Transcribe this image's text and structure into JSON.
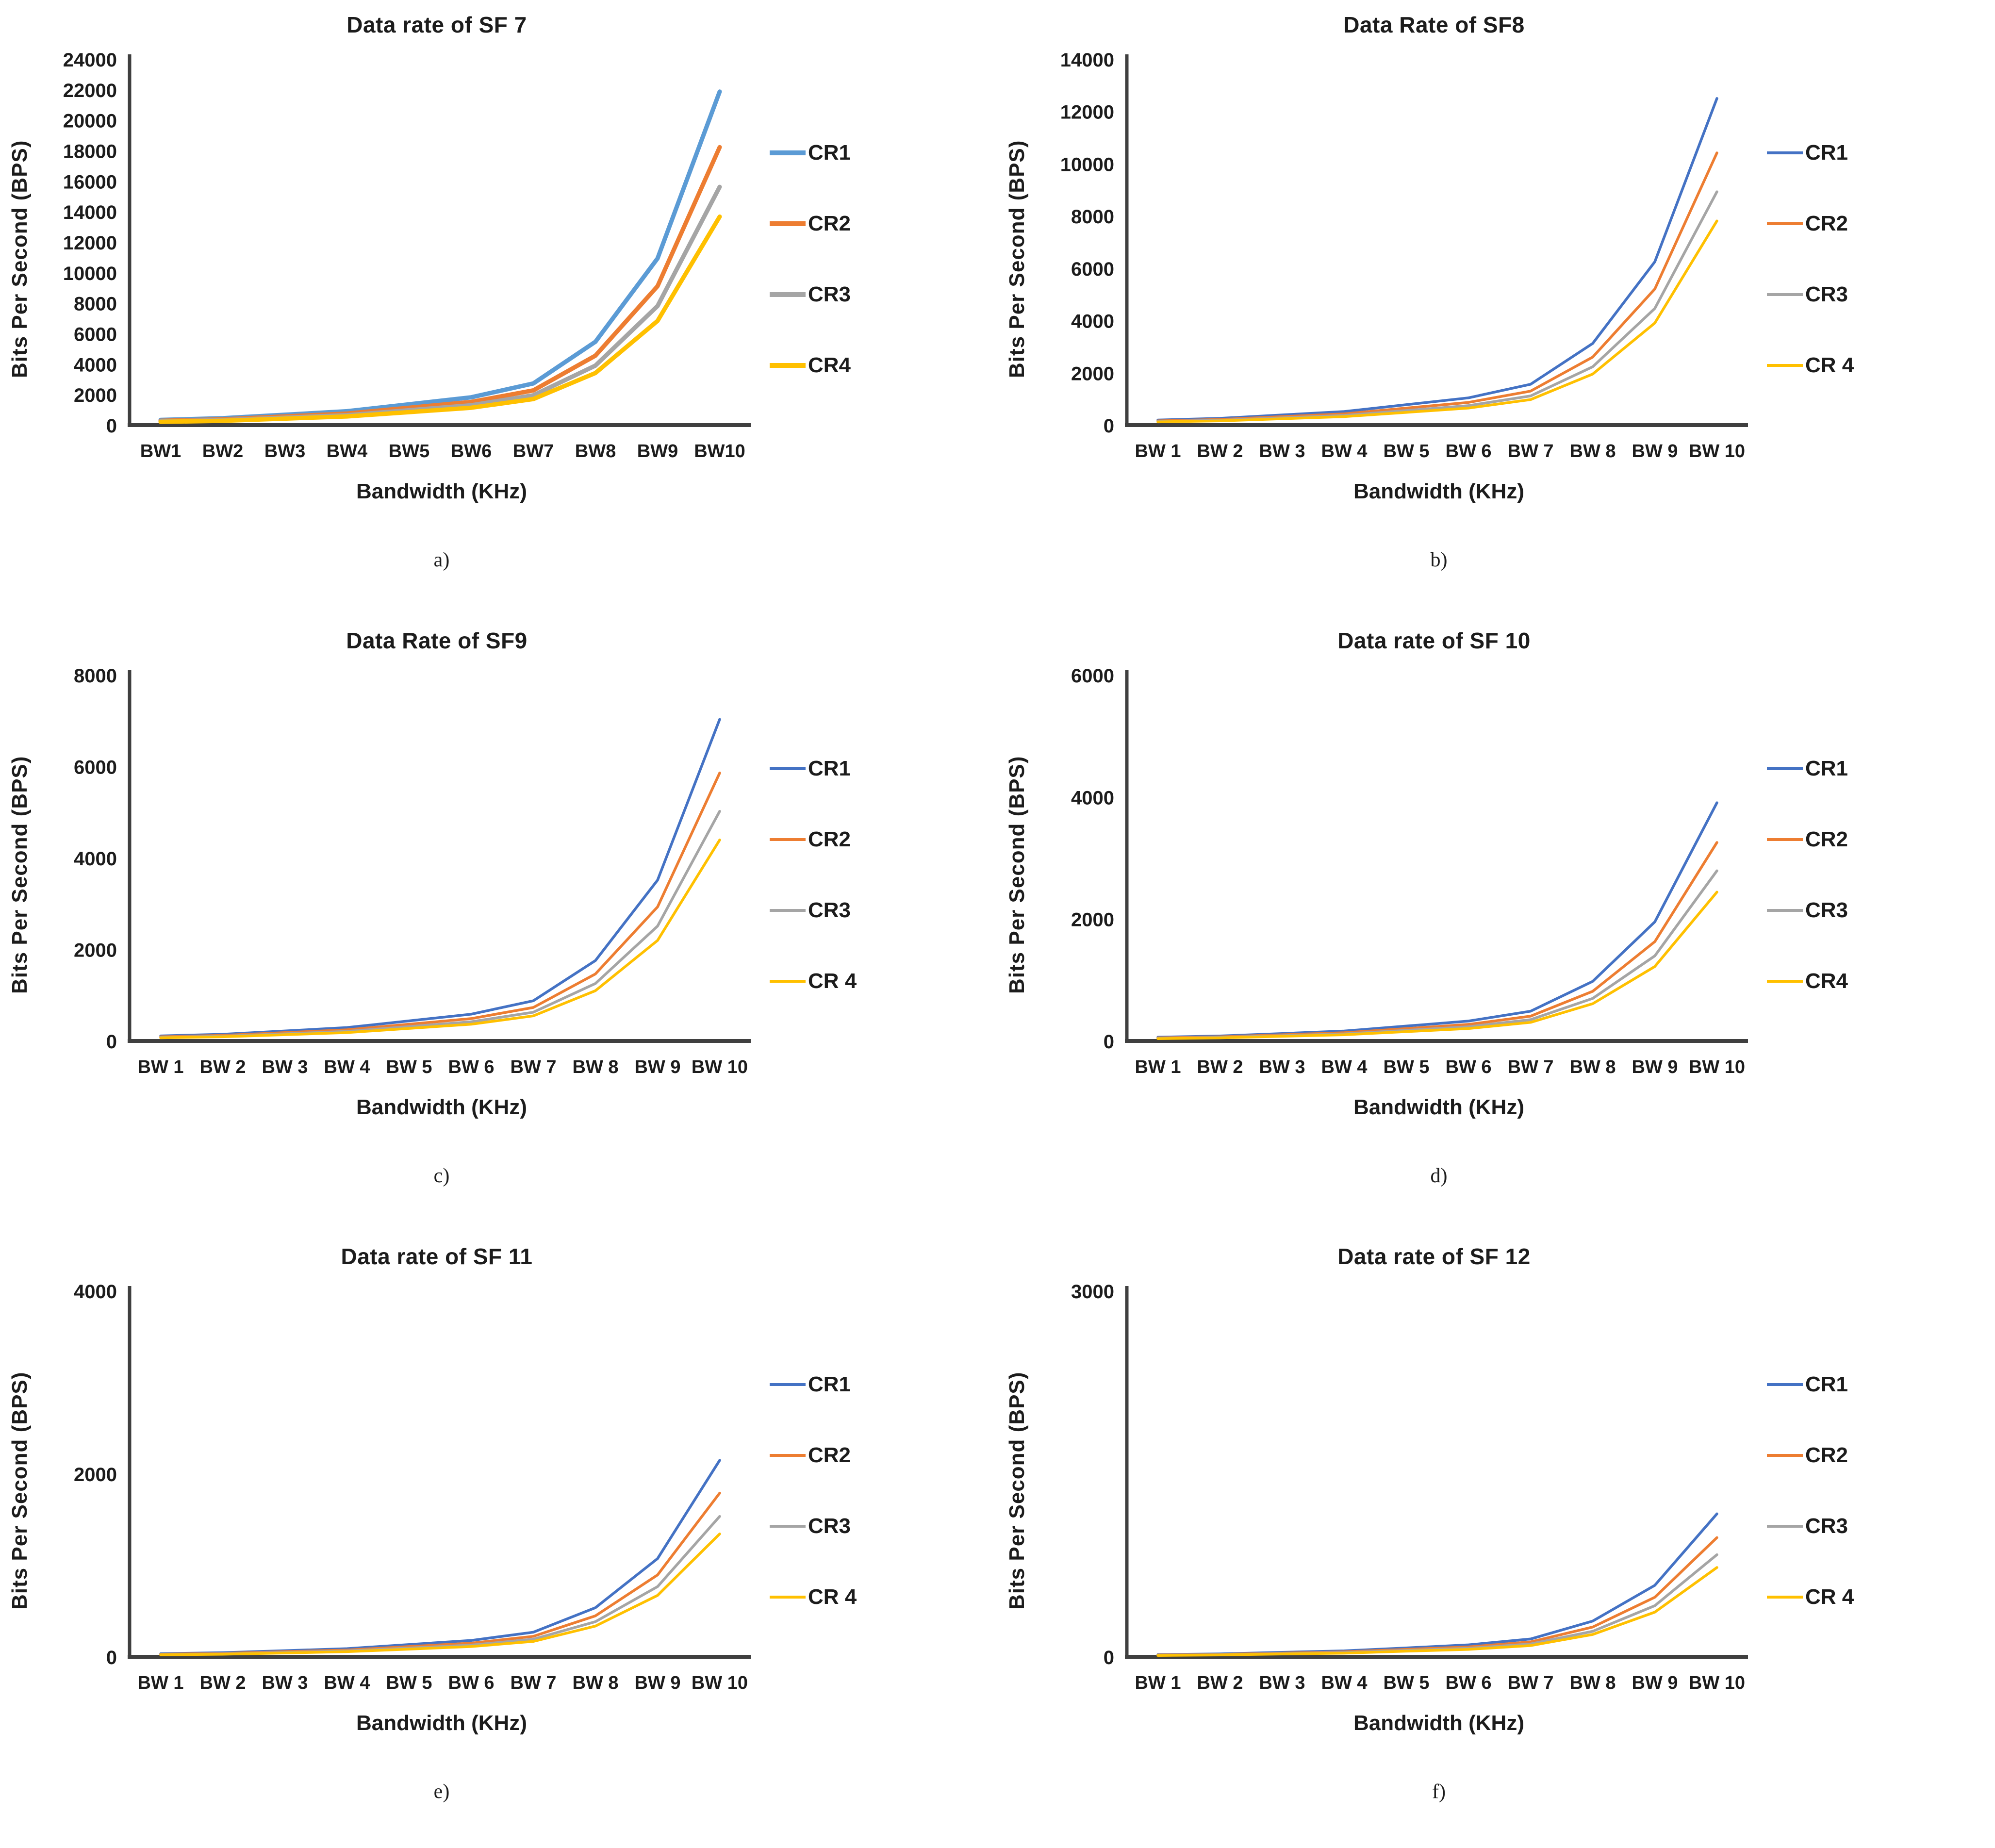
{
  "figure": {
    "background": "#ffffff",
    "text_color": "#1c1c1c",
    "axis_color": "#3f3f3f"
  },
  "chart_data": [
    {
      "type": "line",
      "panel": "a",
      "sub_label": "a)",
      "title": "Data rate of SF 7",
      "xlabel": "Bandwidth (KHz)",
      "ylabel": "Bits Per Second (BPS)",
      "categories": [
        "BW1",
        "BW2",
        "BW3",
        "BW4",
        "BW5",
        "BW6",
        "BW7",
        "BW8",
        "BW9",
        "BW10"
      ],
      "ylim": [
        0,
        24000
      ],
      "y_ticks": [
        0,
        2000,
        4000,
        6000,
        8000,
        10000,
        12000,
        14000,
        16000,
        18000,
        20000,
        22000,
        24000
      ],
      "grid": false,
      "legend_position": "right",
      "series": [
        {
          "name": "CR1",
          "color": "#5B9BD5",
          "values": [
            341,
            455,
            682,
            910,
            1367,
            1824,
            2734,
            5469,
            10938,
            21875
          ]
        },
        {
          "name": "CR2",
          "color": "#ED7D31",
          "values": [
            284,
            379,
            569,
            758,
            1139,
            1520,
            2279,
            4557,
            9115,
            18229
          ]
        },
        {
          "name": "CR3",
          "color": "#A5A5A5",
          "values": [
            244,
            325,
            488,
            650,
            977,
            1303,
            1953,
            3906,
            7813,
            15625
          ]
        },
        {
          "name": "CR4",
          "color": "#FFC000",
          "values": [
            213,
            284,
            427,
            569,
            854,
            1140,
            1709,
            3418,
            6836,
            13672
          ]
        }
      ]
    },
    {
      "type": "line",
      "panel": "b",
      "sub_label": "b)",
      "title": "Data Rate of SF8",
      "xlabel": "Bandwidth (KHz)",
      "ylabel": "Bits Per Second (BPS)",
      "categories": [
        "BW 1",
        "BW 2",
        "BW 3",
        "BW 4",
        "BW 5",
        "BW 6",
        "BW 7",
        "BW 8",
        "BW 9",
        "BW 10"
      ],
      "ylim": [
        0,
        14000
      ],
      "y_ticks": [
        0,
        2000,
        4000,
        6000,
        8000,
        10000,
        12000,
        14000
      ],
      "grid": false,
      "legend_position": "right",
      "series": [
        {
          "name": "CR1",
          "color": "#4472C4",
          "values": [
            195,
            260,
            390,
            520,
            781,
            1043,
            1563,
            3125,
            6250,
            12500
          ]
        },
        {
          "name": "CR2",
          "color": "#ED7D31",
          "values": [
            163,
            217,
            325,
            433,
            651,
            869,
            1302,
            2604,
            5208,
            10417
          ]
        },
        {
          "name": "CR3",
          "color": "#A5A5A5",
          "values": [
            139,
            186,
            279,
            371,
            558,
            745,
            1116,
            2232,
            4464,
            8929
          ]
        },
        {
          "name": "CR 4",
          "color": "#FFC000",
          "values": [
            122,
            163,
            244,
            325,
            488,
            652,
            977,
            1953,
            3906,
            7813
          ]
        }
      ]
    },
    {
      "type": "line",
      "panel": "c",
      "sub_label": "c)",
      "title": "Data Rate of SF9",
      "xlabel": "Bandwidth (KHz)",
      "ylabel": "Bits Per Second (BPS)",
      "categories": [
        "BW 1",
        "BW 2",
        "BW 3",
        "BW 4",
        "BW 5",
        "BW 6",
        "BW 7",
        "BW 8",
        "BW 9",
        "BW 10"
      ],
      "ylim": [
        0,
        8000
      ],
      "y_ticks": [
        0,
        2000,
        4000,
        6000,
        8000
      ],
      "grid": false,
      "legend_position": "right",
      "series": [
        {
          "name": "CR1",
          "color": "#4472C4",
          "values": [
            110,
            146,
            219,
            293,
            439,
            586,
            879,
            1758,
            3516,
            7031
          ]
        },
        {
          "name": "CR2",
          "color": "#ED7D31",
          "values": [
            91,
            122,
            183,
            244,
            366,
            489,
            732,
            1465,
            2930,
            5859
          ]
        },
        {
          "name": "CR3",
          "color": "#A5A5A5",
          "values": [
            78,
            104,
            157,
            209,
            314,
            419,
            628,
            1256,
            2511,
            5022
          ]
        },
        {
          "name": "CR 4",
          "color": "#FFC000",
          "values": [
            69,
            91,
            137,
            183,
            275,
            366,
            549,
            1099,
            2197,
            4395
          ]
        }
      ]
    },
    {
      "type": "line",
      "panel": "d",
      "sub_label": "d)",
      "title": "Data rate of SF 10",
      "xlabel": "Bandwidth (KHz)",
      "ylabel": "Bits Per Second (BPS)",
      "categories": [
        "BW 1",
        "BW 2",
        "BW 3",
        "BW 4",
        "BW 5",
        "BW 6",
        "BW 7",
        "BW 8",
        "BW 9",
        "BW 10"
      ],
      "ylim": [
        0,
        6000
      ],
      "y_ticks": [
        0,
        2000,
        4000,
        6000
      ],
      "grid": false,
      "legend_position": "right",
      "series": [
        {
          "name": "CR1",
          "color": "#4472C4",
          "values": [
            61,
            81,
            122,
            163,
            244,
            326,
            488,
            977,
            1953,
            3906
          ]
        },
        {
          "name": "CR2",
          "color": "#ED7D31",
          "values": [
            51,
            68,
            102,
            135,
            203,
            271,
            407,
            814,
            1628,
            3255
          ]
        },
        {
          "name": "CR3",
          "color": "#A5A5A5",
          "values": [
            44,
            58,
            87,
            116,
            174,
            233,
            349,
            698,
            1395,
            2790
          ]
        },
        {
          "name": "CR4",
          "color": "#FFC000",
          "values": [
            38,
            51,
            76,
            102,
            153,
            204,
            305,
            610,
            1221,
            2441
          ]
        }
      ]
    },
    {
      "type": "line",
      "panel": "e",
      "sub_label": "e)",
      "title": "Data rate of SF 11",
      "xlabel": "Bandwidth (KHz)",
      "ylabel": "Bits Per Second (BPS)",
      "categories": [
        "BW 1",
        "BW 2",
        "BW 3",
        "BW 4",
        "BW 5",
        "BW 6",
        "BW 7",
        "BW 8",
        "BW 9",
        "BW 10"
      ],
      "ylim": [
        0,
        4000
      ],
      "y_ticks": [
        0,
        2000,
        4000
      ],
      "grid": false,
      "legend_position": "right",
      "series": [
        {
          "name": "CR1",
          "color": "#4472C4",
          "values": [
            34,
            45,
            67,
            89,
            134,
            179,
            269,
            537,
            1074,
            2148
          ]
        },
        {
          "name": "CR2",
          "color": "#ED7D31",
          "values": [
            28,
            37,
            56,
            74,
            112,
            149,
            224,
            448,
            895,
            1790
          ]
        },
        {
          "name": "CR3",
          "color": "#A5A5A5",
          "values": [
            24,
            32,
            48,
            64,
            96,
            128,
            192,
            384,
            767,
            1535
          ]
        },
        {
          "name": "CR 4",
          "color": "#FFC000",
          "values": [
            21,
            28,
            42,
            56,
            84,
            112,
            168,
            336,
            671,
            1343
          ]
        }
      ]
    },
    {
      "type": "line",
      "panel": "f",
      "sub_label": "f)",
      "title": "Data rate of SF 12",
      "xlabel": "Bandwidth (KHz)",
      "ylabel": "Bits Per Second (BPS)",
      "categories": [
        "BW 1",
        "BW 2",
        "BW 3",
        "BW 4",
        "BW 5",
        "BW 6",
        "BW 7",
        "BW 8",
        "BW 9",
        "BW 10"
      ],
      "ylim": [
        0,
        3000
      ],
      "y_ticks": [
        0,
        3000
      ],
      "grid": false,
      "legend_position": "right",
      "series": [
        {
          "name": "CR1",
          "color": "#4472C4",
          "values": [
            18,
            24,
            37,
            49,
            73,
            98,
            146,
            293,
            586,
            1172
          ]
        },
        {
          "name": "CR2",
          "color": "#ED7D31",
          "values": [
            15,
            20,
            30,
            41,
            61,
            81,
            122,
            244,
            488,
            977
          ]
        },
        {
          "name": "CR3",
          "color": "#A5A5A5",
          "values": [
            13,
            17,
            26,
            35,
            52,
            70,
            105,
            209,
            419,
            837
          ]
        },
        {
          "name": "CR 4",
          "color": "#FFC000",
          "values": [
            11,
            15,
            23,
            30,
            46,
            61,
            92,
            183,
            366,
            732
          ]
        }
      ]
    }
  ]
}
